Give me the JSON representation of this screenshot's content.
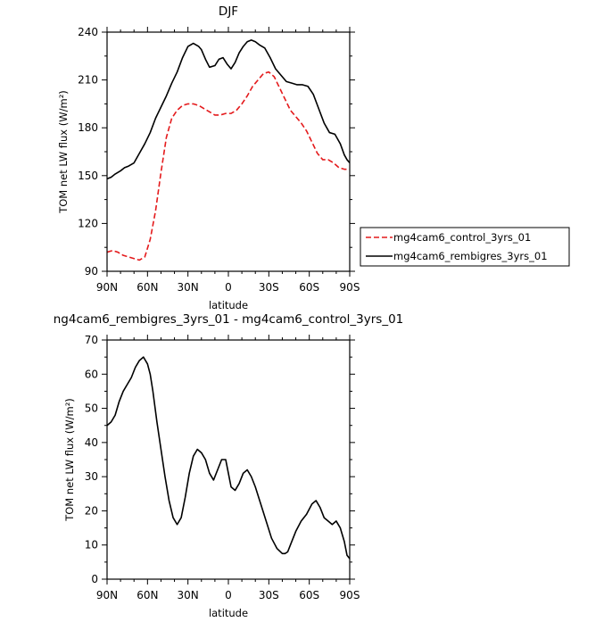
{
  "chart_data": [
    {
      "type": "line",
      "title": "DJF",
      "xlabel": "latitude",
      "ylabel": "TOM net LW flux (W/m²)",
      "ylim": [
        90,
        240
      ],
      "yticks": [
        90,
        120,
        150,
        180,
        210,
        240
      ],
      "xlim": [
        90,
        -90
      ],
      "xticks": [
        90,
        60,
        30,
        0,
        -30,
        -60,
        -90
      ],
      "xtick_labels": [
        "90N",
        "60N",
        "30N",
        "0",
        "30S",
        "60S",
        "90S"
      ],
      "grid": false,
      "legend_position": "right",
      "series": [
        {
          "name": "mg4cam6_control_3yrs_01",
          "color": "#e41a1c",
          "dash": "dashed",
          "x": [
            90,
            86,
            82,
            78,
            74,
            70,
            66,
            62,
            58,
            54,
            50,
            46,
            42,
            38,
            34,
            30,
            26,
            22,
            18,
            14,
            10,
            6,
            2,
            0,
            -2,
            -6,
            -10,
            -14,
            -18,
            -22,
            -26,
            -30,
            -34,
            -38,
            -42,
            -46,
            -50,
            -54,
            -58,
            -62,
            -66,
            -70,
            -74,
            -78,
            -82,
            -86,
            -90
          ],
          "y": [
            102,
            103,
            102,
            100,
            99,
            98,
            97,
            99,
            110,
            128,
            152,
            174,
            186,
            191,
            194,
            195,
            195,
            194,
            192,
            190,
            188,
            188,
            189,
            189,
            189,
            191,
            195,
            200,
            206,
            210,
            214,
            215,
            212,
            205,
            198,
            191,
            187,
            183,
            178,
            171,
            164,
            160,
            160,
            158,
            155,
            154,
            154
          ]
        },
        {
          "name": "mg4cam6_rembigres_3yrs_01",
          "color": "#000000",
          "dash": "solid",
          "x": [
            90,
            87,
            84,
            80,
            77,
            74,
            70,
            66,
            62,
            58,
            54,
            50,
            46,
            42,
            38,
            34,
            30,
            26,
            22,
            20,
            17,
            14,
            10,
            7,
            4,
            1,
            -2,
            -5,
            -8,
            -11,
            -14,
            -17,
            -20,
            -23,
            -27,
            -31,
            -35,
            -39,
            -43,
            -47,
            -51,
            -55,
            -59,
            -63,
            -67,
            -71,
            -75,
            -79,
            -83,
            -86,
            -88,
            -90
          ],
          "y": [
            148,
            149,
            151,
            153,
            155,
            156,
            158,
            164,
            170,
            177,
            186,
            193,
            200,
            208,
            215,
            224,
            231,
            233,
            231,
            229,
            223,
            218,
            219,
            223,
            224,
            220,
            217,
            221,
            227,
            231,
            234,
            235,
            234,
            232,
            230,
            224,
            217,
            213,
            209,
            208,
            207,
            207,
            206,
            201,
            192,
            183,
            177,
            176,
            170,
            163,
            160,
            158
          ]
        }
      ]
    },
    {
      "type": "line",
      "title": "ng4cam6_rembigres_3yrs_01 - mg4cam6_control_3yrs_01",
      "xlabel": "latitude",
      "ylabel": "TOM net LW flux (W/m²)",
      "ylim": [
        0,
        70
      ],
      "yticks": [
        0,
        10,
        20,
        30,
        40,
        50,
        60,
        70
      ],
      "xlim": [
        90,
        -90
      ],
      "xticks": [
        90,
        60,
        30,
        0,
        -30,
        -60,
        -90
      ],
      "xtick_labels": [
        "90N",
        "60N",
        "30N",
        "0",
        "30S",
        "60S",
        "90S"
      ],
      "grid": false,
      "series": [
        {
          "color": "#000000",
          "dash": "solid",
          "x": [
            90,
            87,
            84,
            81,
            78,
            75,
            72,
            69,
            66,
            63,
            60,
            58,
            56,
            53,
            50,
            47,
            44,
            41,
            38,
            35,
            32,
            29,
            26,
            23,
            20,
            17,
            14,
            11,
            8,
            5,
            2,
            0,
            -2,
            -5,
            -8,
            -11,
            -14,
            -17,
            -20,
            -24,
            -28,
            -32,
            -36,
            -40,
            -42,
            -44,
            -46,
            -50,
            -54,
            -58,
            -62,
            -65,
            -68,
            -71,
            -74,
            -77,
            -80,
            -83,
            -86,
            -88,
            -90
          ],
          "y": [
            45,
            46,
            48,
            52,
            55,
            57,
            59,
            62,
            64,
            65,
            63,
            60,
            55,
            46,
            38,
            30,
            23,
            18,
            16,
            18,
            24,
            31,
            36,
            38,
            37,
            35,
            31,
            29,
            32,
            35,
            35,
            31,
            27,
            26,
            28,
            31,
            32,
            30,
            27,
            22,
            17,
            12,
            9,
            7.5,
            7.5,
            8,
            10,
            14,
            17,
            19,
            22,
            23,
            21,
            18,
            17,
            16,
            17,
            15,
            11,
            7,
            6
          ]
        }
      ]
    }
  ]
}
